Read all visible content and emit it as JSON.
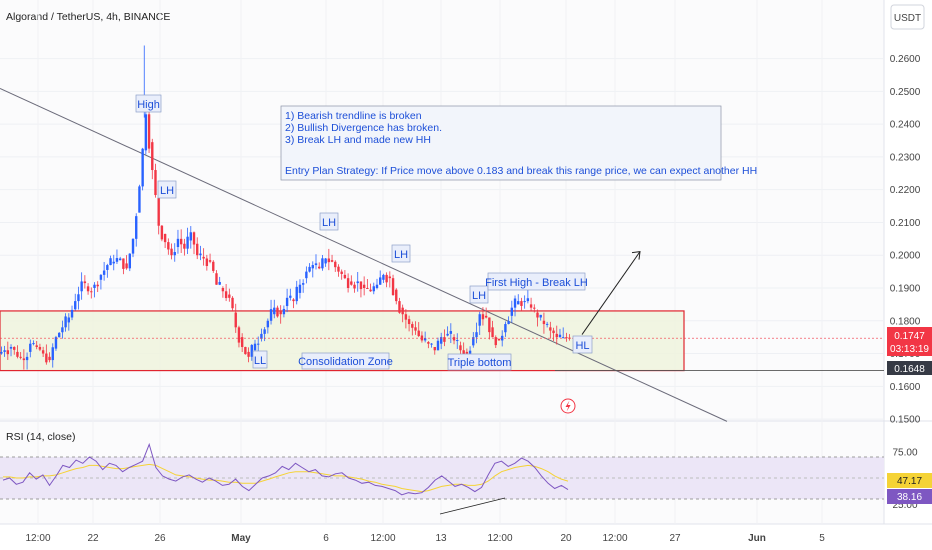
{
  "header": {
    "title": "Algorand / TetherUS, 4h, BINANCE",
    "currency_button": "USDT"
  },
  "colors": {
    "bull": "#2962ff",
    "bear": "#f23645",
    "trendline": "#6b6b7a",
    "zone_fill": "#eef3dd",
    "zone_border": "#e0242e",
    "annotation_text": "#1d4fd8",
    "rsi_line": "#7e57c2",
    "rsi_ma": "#f5d336",
    "rsi_band": "#ece6f7"
  },
  "annotations": {
    "high": "High",
    "lh1": "LH",
    "lh2": "LH",
    "lh3": "LH",
    "lh4": "LH",
    "ll": "LL",
    "hl": "HL",
    "first_high": "First High - Break LH",
    "consolidation": "Consolidation Zone",
    "triple_bottom": "Triple bottom",
    "note_lines": [
      "1) Bearish trendline is broken",
      "2) Bullish Divergence has broken.",
      "3)  Break LH and made new HH",
      "",
      "Entry Plan Strategy: If Price move above 0.183 and break this range price, we can expect another HH"
    ]
  },
  "price_tags": {
    "last_price": "0.1747",
    "countdown": "03:13:19",
    "zone_low": "0.1648"
  },
  "rsi": {
    "label": "RSI (14, close)",
    "value_ma": "47.17",
    "value_rsi": "38.16"
  },
  "chart_data": {
    "type": "candlestick",
    "symbol": "Algorand / TetherUS",
    "timeframe": "4h",
    "exchange": "BINANCE",
    "y_ticks": [
      "0.2600",
      "0.2500",
      "0.2400",
      "0.2300",
      "0.2200",
      "0.2100",
      "0.2000",
      "0.1900",
      "0.1800",
      "0.1700",
      "0.1600",
      "0.1500"
    ],
    "y_range": [
      0.1485,
      0.2672
    ],
    "x_ticks": [
      "12:00",
      "22",
      "26",
      "May",
      "6",
      "12:00",
      "13",
      "12:00",
      "20",
      "12:00",
      "27",
      "Jun",
      "5"
    ],
    "close_path": [
      0.171,
      0.172,
      0.169,
      0.168,
      0.173,
      0.172,
      0.17,
      0.168,
      0.175,
      0.178,
      0.181,
      0.186,
      0.192,
      0.189,
      0.191,
      0.194,
      0.197,
      0.198,
      0.199,
      0.196,
      0.205,
      0.221,
      0.243,
      0.226,
      0.209,
      0.204,
      0.2,
      0.205,
      0.202,
      0.207,
      0.2,
      0.199,
      0.198,
      0.191,
      0.189,
      0.187,
      0.178,
      0.172,
      0.169,
      0.173,
      0.176,
      0.18,
      0.184,
      0.182,
      0.187,
      0.186,
      0.191,
      0.195,
      0.197,
      0.196,
      0.199,
      0.198,
      0.195,
      0.193,
      0.191,
      0.192,
      0.19,
      0.189,
      0.191,
      0.194,
      0.193,
      0.186,
      0.182,
      0.179,
      0.177,
      0.174,
      0.173,
      0.171,
      0.175,
      0.176,
      0.174,
      0.171,
      0.17,
      0.175,
      0.182,
      0.181,
      0.175,
      0.174,
      0.179,
      0.184,
      0.186,
      0.186,
      0.184,
      0.181,
      0.179,
      0.177,
      0.175,
      0.175,
      0.1747
    ],
    "rsi_path": [
      48,
      50,
      44,
      46,
      55,
      49,
      53,
      43,
      52,
      62,
      60,
      67,
      64,
      70,
      66,
      58,
      64,
      62,
      56,
      60,
      63,
      66,
      82,
      60,
      52,
      49,
      47,
      51,
      53,
      49,
      46,
      50,
      47,
      43,
      44,
      49,
      42,
      38,
      44,
      50,
      52,
      55,
      61,
      58,
      64,
      60,
      56,
      58,
      52,
      51,
      54,
      55,
      50,
      48,
      45,
      46,
      43,
      42,
      40,
      38,
      34,
      36,
      35,
      36,
      41,
      48,
      52,
      47,
      42,
      44,
      41,
      37,
      41,
      53,
      64,
      66,
      61,
      64,
      69,
      66,
      60,
      52,
      45,
      40,
      43,
      39
    ],
    "rsi_ma_path": [
      51,
      51,
      50,
      50,
      51,
      51,
      52,
      52,
      53,
      55,
      57,
      59,
      60,
      62,
      62,
      61,
      60,
      59,
      59,
      60,
      61,
      62,
      63,
      62,
      59,
      56,
      53,
      52,
      51,
      50,
      49,
      48,
      48,
      47,
      46,
      46,
      45,
      45,
      45,
      47,
      49,
      51,
      53,
      55,
      56,
      56,
      56,
      55,
      54,
      53,
      52,
      52,
      51,
      50,
      49,
      47,
      46,
      44,
      43,
      42,
      40,
      39,
      38,
      37,
      38,
      40,
      42,
      43,
      44,
      44,
      43,
      43,
      44,
      47,
      52,
      56,
      58,
      60,
      61,
      62,
      61,
      59,
      56,
      52,
      49,
      47
    ],
    "rsi_y_ticks": [
      "75.00",
      "25.00"
    ],
    "rsi_band": [
      30,
      70
    ],
    "consolidation_zone": [
      0.1648,
      0.183
    ],
    "trendline": {
      "from_price": 0.2509,
      "to_price": 0.1493
    },
    "projection_target": 0.2011
  }
}
